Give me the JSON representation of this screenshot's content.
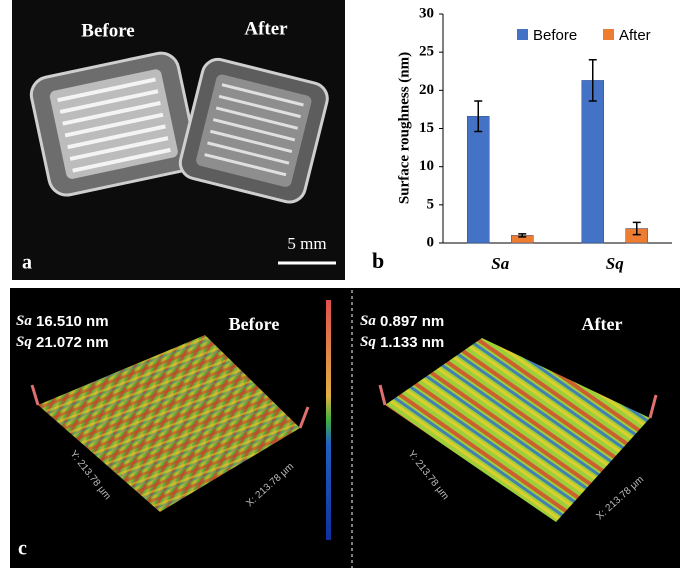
{
  "photo": {
    "panel": "a",
    "left_label": "Before",
    "right_label": "After",
    "scale_bar": "5 mm"
  },
  "chart_data": {
    "type": "bar",
    "panel": "b",
    "ylabel": "Surface roughness (nm)",
    "categories": [
      "Sa",
      "Sq"
    ],
    "series": [
      {
        "name": "Before",
        "color": "#4472c4",
        "values": [
          16.6,
          21.3
        ],
        "errors": [
          2.0,
          2.7
        ]
      },
      {
        "name": "After",
        "color": "#ed7d31",
        "values": [
          1.0,
          1.9
        ],
        "errors": [
          0.2,
          0.8
        ]
      }
    ],
    "ylim": [
      0,
      30
    ],
    "yticks": [
      0,
      5,
      10,
      15,
      20,
      25,
      30
    ],
    "legend": "top-right",
    "grid": false
  },
  "profiles": {
    "panel": "c",
    "before": {
      "title": "Before",
      "sa_label": "Sa",
      "sa_value": "16.510 nm",
      "sq_label": "Sq",
      "sq_value": "21.072 nm",
      "x_axis": "X: 213.78 µm",
      "y_axis": "Y: 213.78 µm"
    },
    "after": {
      "title": "After",
      "sa_label": "Sa",
      "sa_value": "0.897  nm",
      "sq_label": "Sq",
      "sq_value": "1.133  nm",
      "x_axis": "X: 213.78 µm",
      "y_axis": "Y: 213.78 µm"
    }
  }
}
